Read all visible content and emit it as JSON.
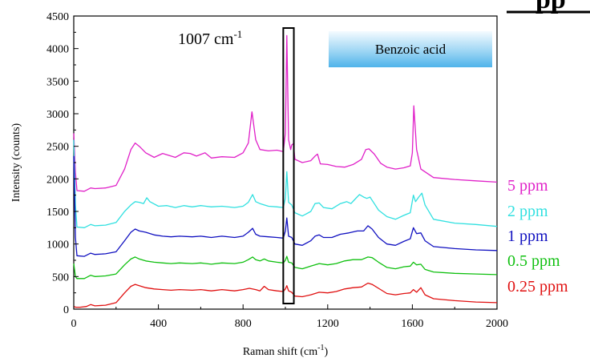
{
  "chart_data": {
    "type": "line",
    "xlabel": "Raman shift (cm",
    "xlabel_sup": "-1",
    "xlabel_end": ")",
    "ylabel": "Intensity (counts)",
    "xlim": [
      0,
      2000
    ],
    "ylim": [
      0,
      4500
    ],
    "xticks": [
      0,
      400,
      800,
      1200,
      1600,
      2000
    ],
    "yticks": [
      0,
      500,
      1000,
      1500,
      2000,
      2500,
      3000,
      3500,
      4000,
      4500
    ],
    "grid": false,
    "annotation": {
      "text": "1007 cm",
      "sup": "-1",
      "highlight_x": [
        990,
        1040
      ]
    },
    "label_box": {
      "text": "Benzoic acid"
    },
    "corner_fragment": "pp",
    "series": [
      {
        "name": "5 ppm",
        "color": "#e020c8",
        "points": [
          [
            0,
            2700
          ],
          [
            8,
            2100
          ],
          [
            15,
            1820
          ],
          [
            50,
            1810
          ],
          [
            80,
            1860
          ],
          [
            100,
            1850
          ],
          [
            150,
            1860
          ],
          [
            200,
            1900
          ],
          [
            240,
            2150
          ],
          [
            270,
            2450
          ],
          [
            290,
            2550
          ],
          [
            310,
            2500
          ],
          [
            340,
            2400
          ],
          [
            380,
            2330
          ],
          [
            420,
            2390
          ],
          [
            440,
            2370
          ],
          [
            480,
            2330
          ],
          [
            520,
            2400
          ],
          [
            550,
            2390
          ],
          [
            580,
            2350
          ],
          [
            620,
            2400
          ],
          [
            650,
            2320
          ],
          [
            700,
            2340
          ],
          [
            760,
            2330
          ],
          [
            800,
            2400
          ],
          [
            825,
            2550
          ],
          [
            842,
            3030
          ],
          [
            860,
            2600
          ],
          [
            880,
            2450
          ],
          [
            920,
            2430
          ],
          [
            960,
            2440
          ],
          [
            990,
            2420
          ],
          [
            1000,
            2700
          ],
          [
            1007,
            4200
          ],
          [
            1015,
            2600
          ],
          [
            1025,
            2450
          ],
          [
            1030,
            2520
          ],
          [
            1038,
            2540
          ],
          [
            1045,
            2300
          ],
          [
            1080,
            2250
          ],
          [
            1120,
            2280
          ],
          [
            1140,
            2350
          ],
          [
            1152,
            2380
          ],
          [
            1165,
            2230
          ],
          [
            1200,
            2220
          ],
          [
            1240,
            2190
          ],
          [
            1280,
            2180
          ],
          [
            1320,
            2220
          ],
          [
            1360,
            2300
          ],
          [
            1380,
            2450
          ],
          [
            1395,
            2460
          ],
          [
            1420,
            2380
          ],
          [
            1450,
            2240
          ],
          [
            1480,
            2180
          ],
          [
            1520,
            2150
          ],
          [
            1560,
            2170
          ],
          [
            1590,
            2200
          ],
          [
            1600,
            2400
          ],
          [
            1607,
            3120
          ],
          [
            1620,
            2450
          ],
          [
            1640,
            2150
          ],
          [
            1700,
            2020
          ],
          [
            1800,
            1990
          ],
          [
            1900,
            1970
          ],
          [
            2000,
            1950
          ]
        ]
      },
      {
        "name": "2 ppm",
        "color": "#30e0e0",
        "points": [
          [
            0,
            2600
          ],
          [
            8,
            1600
          ],
          [
            15,
            1260
          ],
          [
            50,
            1250
          ],
          [
            80,
            1300
          ],
          [
            100,
            1280
          ],
          [
            150,
            1290
          ],
          [
            200,
            1330
          ],
          [
            240,
            1500
          ],
          [
            270,
            1600
          ],
          [
            290,
            1650
          ],
          [
            310,
            1640
          ],
          [
            330,
            1620
          ],
          [
            345,
            1710
          ],
          [
            360,
            1650
          ],
          [
            400,
            1580
          ],
          [
            440,
            1590
          ],
          [
            480,
            1560
          ],
          [
            520,
            1590
          ],
          [
            560,
            1570
          ],
          [
            600,
            1590
          ],
          [
            650,
            1570
          ],
          [
            700,
            1580
          ],
          [
            760,
            1560
          ],
          [
            800,
            1580
          ],
          [
            825,
            1640
          ],
          [
            845,
            1760
          ],
          [
            860,
            1650
          ],
          [
            880,
            1620
          ],
          [
            900,
            1600
          ],
          [
            920,
            1580
          ],
          [
            960,
            1570
          ],
          [
            990,
            1560
          ],
          [
            1000,
            1700
          ],
          [
            1007,
            2110
          ],
          [
            1015,
            1640
          ],
          [
            1030,
            1600
          ],
          [
            1045,
            1480
          ],
          [
            1080,
            1430
          ],
          [
            1120,
            1500
          ],
          [
            1140,
            1620
          ],
          [
            1160,
            1630
          ],
          [
            1180,
            1560
          ],
          [
            1220,
            1540
          ],
          [
            1260,
            1620
          ],
          [
            1290,
            1650
          ],
          [
            1310,
            1620
          ],
          [
            1330,
            1690
          ],
          [
            1350,
            1760
          ],
          [
            1370,
            1720
          ],
          [
            1385,
            1700
          ],
          [
            1400,
            1720
          ],
          [
            1420,
            1620
          ],
          [
            1440,
            1520
          ],
          [
            1480,
            1420
          ],
          [
            1520,
            1380
          ],
          [
            1560,
            1440
          ],
          [
            1590,
            1480
          ],
          [
            1605,
            1750
          ],
          [
            1615,
            1650
          ],
          [
            1630,
            1720
          ],
          [
            1645,
            1780
          ],
          [
            1660,
            1600
          ],
          [
            1700,
            1380
          ],
          [
            1800,
            1320
          ],
          [
            1900,
            1300
          ],
          [
            2000,
            1270
          ]
        ]
      },
      {
        "name": "1 ppm",
        "color": "#1010c0",
        "points": [
          [
            0,
            2350
          ],
          [
            8,
            1100
          ],
          [
            15,
            820
          ],
          [
            50,
            810
          ],
          [
            80,
            860
          ],
          [
            100,
            840
          ],
          [
            150,
            850
          ],
          [
            200,
            880
          ],
          [
            240,
            1050
          ],
          [
            270,
            1180
          ],
          [
            290,
            1230
          ],
          [
            310,
            1200
          ],
          [
            340,
            1180
          ],
          [
            380,
            1140
          ],
          [
            420,
            1120
          ],
          [
            460,
            1110
          ],
          [
            500,
            1120
          ],
          [
            560,
            1110
          ],
          [
            600,
            1120
          ],
          [
            650,
            1100
          ],
          [
            700,
            1120
          ],
          [
            760,
            1100
          ],
          [
            800,
            1120
          ],
          [
            825,
            1180
          ],
          [
            845,
            1240
          ],
          [
            860,
            1150
          ],
          [
            880,
            1120
          ],
          [
            920,
            1110
          ],
          [
            960,
            1100
          ],
          [
            990,
            1090
          ],
          [
            1000,
            1200
          ],
          [
            1007,
            1400
          ],
          [
            1015,
            1120
          ],
          [
            1030,
            1100
          ],
          [
            1045,
            1000
          ],
          [
            1080,
            980
          ],
          [
            1120,
            1050
          ],
          [
            1140,
            1120
          ],
          [
            1160,
            1140
          ],
          [
            1180,
            1100
          ],
          [
            1220,
            1100
          ],
          [
            1260,
            1150
          ],
          [
            1300,
            1170
          ],
          [
            1340,
            1200
          ],
          [
            1370,
            1200
          ],
          [
            1390,
            1280
          ],
          [
            1410,
            1230
          ],
          [
            1440,
            1100
          ],
          [
            1480,
            1000
          ],
          [
            1520,
            980
          ],
          [
            1560,
            1040
          ],
          [
            1590,
            1080
          ],
          [
            1605,
            1250
          ],
          [
            1620,
            1160
          ],
          [
            1640,
            1170
          ],
          [
            1660,
            1050
          ],
          [
            1700,
            960
          ],
          [
            1800,
            930
          ],
          [
            1900,
            910
          ],
          [
            2000,
            900
          ]
        ]
      },
      {
        "name": "0.5 ppm",
        "color": "#10c010",
        "points": [
          [
            0,
            700
          ],
          [
            8,
            500
          ],
          [
            15,
            470
          ],
          [
            50,
            470
          ],
          [
            80,
            520
          ],
          [
            100,
            500
          ],
          [
            150,
            510
          ],
          [
            200,
            540
          ],
          [
            240,
            680
          ],
          [
            270,
            770
          ],
          [
            290,
            800
          ],
          [
            310,
            770
          ],
          [
            340,
            740
          ],
          [
            380,
            720
          ],
          [
            420,
            710
          ],
          [
            460,
            700
          ],
          [
            500,
            710
          ],
          [
            560,
            700
          ],
          [
            600,
            710
          ],
          [
            650,
            690
          ],
          [
            700,
            710
          ],
          [
            760,
            700
          ],
          [
            800,
            720
          ],
          [
            825,
            760
          ],
          [
            845,
            800
          ],
          [
            860,
            760
          ],
          [
            880,
            740
          ],
          [
            900,
            770
          ],
          [
            920,
            740
          ],
          [
            960,
            720
          ],
          [
            990,
            710
          ],
          [
            1000,
            750
          ],
          [
            1007,
            810
          ],
          [
            1015,
            720
          ],
          [
            1030,
            710
          ],
          [
            1045,
            640
          ],
          [
            1080,
            620
          ],
          [
            1120,
            660
          ],
          [
            1160,
            700
          ],
          [
            1200,
            680
          ],
          [
            1240,
            700
          ],
          [
            1280,
            740
          ],
          [
            1320,
            760
          ],
          [
            1360,
            760
          ],
          [
            1390,
            800
          ],
          [
            1410,
            790
          ],
          [
            1440,
            720
          ],
          [
            1480,
            640
          ],
          [
            1520,
            620
          ],
          [
            1560,
            650
          ],
          [
            1590,
            660
          ],
          [
            1605,
            720
          ],
          [
            1620,
            680
          ],
          [
            1640,
            690
          ],
          [
            1660,
            610
          ],
          [
            1700,
            570
          ],
          [
            1800,
            550
          ],
          [
            1900,
            540
          ],
          [
            2000,
            530
          ]
        ]
      },
      {
        "name": "0.25 ppm",
        "color": "#e01010",
        "points": [
          [
            0,
            40
          ],
          [
            10,
            30
          ],
          [
            30,
            30
          ],
          [
            60,
            40
          ],
          [
            80,
            70
          ],
          [
            100,
            50
          ],
          [
            150,
            60
          ],
          [
            200,
            100
          ],
          [
            240,
            250
          ],
          [
            270,
            350
          ],
          [
            290,
            380
          ],
          [
            310,
            360
          ],
          [
            340,
            330
          ],
          [
            380,
            310
          ],
          [
            420,
            300
          ],
          [
            460,
            290
          ],
          [
            500,
            300
          ],
          [
            560,
            290
          ],
          [
            600,
            300
          ],
          [
            650,
            280
          ],
          [
            700,
            300
          ],
          [
            760,
            280
          ],
          [
            800,
            300
          ],
          [
            830,
            320
          ],
          [
            860,
            300
          ],
          [
            880,
            280
          ],
          [
            900,
            350
          ],
          [
            920,
            300
          ],
          [
            960,
            280
          ],
          [
            990,
            270
          ],
          [
            1000,
            310
          ],
          [
            1007,
            360
          ],
          [
            1015,
            280
          ],
          [
            1030,
            260
          ],
          [
            1045,
            200
          ],
          [
            1080,
            190
          ],
          [
            1120,
            220
          ],
          [
            1160,
            260
          ],
          [
            1200,
            250
          ],
          [
            1240,
            270
          ],
          [
            1280,
            310
          ],
          [
            1320,
            330
          ],
          [
            1360,
            340
          ],
          [
            1390,
            400
          ],
          [
            1410,
            380
          ],
          [
            1440,
            320
          ],
          [
            1480,
            240
          ],
          [
            1520,
            220
          ],
          [
            1560,
            240
          ],
          [
            1590,
            250
          ],
          [
            1605,
            300
          ],
          [
            1620,
            260
          ],
          [
            1640,
            330
          ],
          [
            1660,
            220
          ],
          [
            1700,
            160
          ],
          [
            1800,
            130
          ],
          [
            1900,
            110
          ],
          [
            2000,
            100
          ]
        ]
      }
    ]
  }
}
